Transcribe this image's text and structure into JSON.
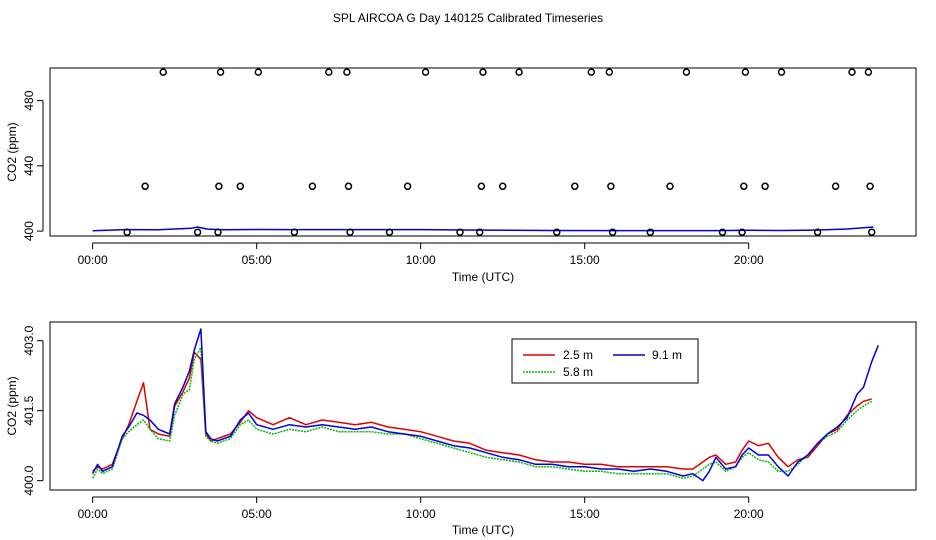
{
  "title": "SPL AIRCOA G  Day 140125  Calibrated Timeseries",
  "colors": {
    "s25": "#e00000",
    "s58": "#00bb00",
    "s91": "#0000dd",
    "points": "#000000"
  },
  "chart_data": [
    {
      "type": "scatter",
      "xlabel": "Time (UTC)",
      "ylabel": "CO2 (ppm)",
      "xlim": [
        -1.3,
        25.1
      ],
      "ylim": [
        397,
        500
      ],
      "x_ticks": [
        0,
        5,
        10,
        15,
        20
      ],
      "x_tick_labels": [
        "00:00",
        "05:00",
        "10:00",
        "15:00",
        "20:00"
      ],
      "y_ticks": [
        400,
        440,
        480
      ],
      "y_tick_labels": [
        "400",
        "440",
        "480"
      ],
      "points": [
        {
          "x": 1.05,
          "y": 399.3
        },
        {
          "x": 1.6,
          "y": 427.5
        },
        {
          "x": 2.15,
          "y": 497.5
        },
        {
          "x": 3.2,
          "y": 399.3
        },
        {
          "x": 3.82,
          "y": 399.3
        },
        {
          "x": 3.85,
          "y": 427.5
        },
        {
          "x": 3.9,
          "y": 497.5
        },
        {
          "x": 4.5,
          "y": 427.5
        },
        {
          "x": 5.05,
          "y": 497.5
        },
        {
          "x": 6.15,
          "y": 399.3
        },
        {
          "x": 6.7,
          "y": 427.5
        },
        {
          "x": 7.2,
          "y": 497.5
        },
        {
          "x": 7.75,
          "y": 497.5
        },
        {
          "x": 7.8,
          "y": 427.5
        },
        {
          "x": 7.85,
          "y": 399.3
        },
        {
          "x": 9.05,
          "y": 399.3
        },
        {
          "x": 9.6,
          "y": 427.5
        },
        {
          "x": 10.15,
          "y": 497.5
        },
        {
          "x": 11.2,
          "y": 399.3
        },
        {
          "x": 11.8,
          "y": 399.3
        },
        {
          "x": 11.85,
          "y": 427.5
        },
        {
          "x": 11.9,
          "y": 497.5
        },
        {
          "x": 12.5,
          "y": 427.5
        },
        {
          "x": 13.0,
          "y": 497.5
        },
        {
          "x": 14.15,
          "y": 399.3
        },
        {
          "x": 14.7,
          "y": 427.5
        },
        {
          "x": 15.2,
          "y": 497.5
        },
        {
          "x": 15.75,
          "y": 497.5
        },
        {
          "x": 15.8,
          "y": 427.5
        },
        {
          "x": 15.85,
          "y": 399.3
        },
        {
          "x": 17.0,
          "y": 399.3
        },
        {
          "x": 17.6,
          "y": 427.5
        },
        {
          "x": 18.1,
          "y": 497.5
        },
        {
          "x": 19.2,
          "y": 399.3
        },
        {
          "x": 19.8,
          "y": 399.3
        },
        {
          "x": 19.85,
          "y": 427.5
        },
        {
          "x": 19.9,
          "y": 497.5
        },
        {
          "x": 20.5,
          "y": 427.5
        },
        {
          "x": 21.0,
          "y": 497.5
        },
        {
          "x": 22.1,
          "y": 399.3
        },
        {
          "x": 22.65,
          "y": 427.5
        },
        {
          "x": 23.15,
          "y": 497.5
        },
        {
          "x": 23.65,
          "y": 497.5
        },
        {
          "x": 23.7,
          "y": 427.5
        },
        {
          "x": 23.75,
          "y": 399.3
        }
      ],
      "line": {
        "x": [
          0,
          1,
          2,
          3,
          3.2,
          3.5,
          4,
          5,
          6,
          8,
          10,
          12,
          14,
          16,
          18,
          19,
          20,
          21,
          22,
          23,
          23.8
        ],
        "y": [
          400.2,
          400.9,
          400.8,
          401.7,
          402.5,
          401.2,
          400.8,
          401.0,
          400.9,
          400.9,
          400.9,
          400.6,
          400.4,
          400.3,
          400.3,
          400.3,
          400.5,
          400.4,
          400.6,
          401.3,
          402.5
        ]
      }
    },
    {
      "type": "line",
      "xlabel": "Time (UTC)",
      "ylabel": "CO2 (ppm)",
      "xlim": [
        -1.3,
        25.1
      ],
      "ylim": [
        399.8,
        403.4
      ],
      "x_ticks": [
        0,
        5,
        10,
        15,
        20
      ],
      "x_tick_labels": [
        "00:00",
        "05:00",
        "10:00",
        "15:00",
        "20:00"
      ],
      "y_ticks": [
        400.0,
        401.5,
        403.0
      ],
      "y_tick_labels": [
        "400.0",
        "401.5",
        "403.0"
      ],
      "legend_position": "top-right",
      "series": [
        {
          "name": "2.5 m",
          "color": "#e00000",
          "x": [
            0,
            0.15,
            0.3,
            0.6,
            0.9,
            1.1,
            1.35,
            1.55,
            1.75,
            2.0,
            2.35,
            2.5,
            2.75,
            2.95,
            3.1,
            3.3,
            3.45,
            3.6,
            3.8,
            4.2,
            4.5,
            4.75,
            5.0,
            5.5,
            6.0,
            6.5,
            7.0,
            7.5,
            8.0,
            8.5,
            9.0,
            9.5,
            10.0,
            10.5,
            11.0,
            11.5,
            12.0,
            12.5,
            13.0,
            13.5,
            14.0,
            14.5,
            15.0,
            15.5,
            16.0,
            16.5,
            17.0,
            17.5,
            18.0,
            18.3,
            18.6,
            18.8,
            19.0,
            19.3,
            19.6,
            19.8,
            20.0,
            20.3,
            20.6,
            20.9,
            21.2,
            21.5,
            21.8,
            22.1,
            22.4,
            22.7,
            23.0,
            23.3,
            23.5,
            23.75
          ],
          "y": [
            400.2,
            400.3,
            400.25,
            400.35,
            400.9,
            401.2,
            401.7,
            402.1,
            401.1,
            401.0,
            400.95,
            401.6,
            401.9,
            402.2,
            402.75,
            402.6,
            401.0,
            400.85,
            400.9,
            401.0,
            401.25,
            401.5,
            401.35,
            401.2,
            401.35,
            401.2,
            401.3,
            401.25,
            401.2,
            401.25,
            401.15,
            401.1,
            401.05,
            400.95,
            400.85,
            400.8,
            400.65,
            400.6,
            400.55,
            400.45,
            400.4,
            400.4,
            400.35,
            400.35,
            400.3,
            400.3,
            400.3,
            400.3,
            400.25,
            400.25,
            400.4,
            400.5,
            400.55,
            400.35,
            400.4,
            400.65,
            400.85,
            400.75,
            400.8,
            400.5,
            400.3,
            400.45,
            400.5,
            400.75,
            401.0,
            401.1,
            401.4,
            401.6,
            401.7,
            401.75
          ]
        },
        {
          "name": "5.8 m",
          "color": "#00bb00",
          "x": [
            0,
            0.15,
            0.3,
            0.6,
            0.9,
            1.1,
            1.35,
            1.55,
            1.75,
            2.0,
            2.35,
            2.5,
            2.75,
            2.95,
            3.1,
            3.3,
            3.45,
            3.6,
            3.8,
            4.2,
            4.5,
            4.75,
            5.0,
            5.5,
            6.0,
            6.5,
            7.0,
            7.5,
            8.0,
            8.5,
            9.0,
            9.5,
            10.0,
            10.5,
            11.0,
            11.5,
            12.0,
            12.5,
            13.0,
            13.5,
            14.0,
            14.5,
            15.0,
            15.5,
            16.0,
            16.5,
            17.0,
            17.5,
            18.0,
            18.3,
            18.6,
            18.8,
            19.0,
            19.3,
            19.6,
            19.8,
            20.0,
            20.3,
            20.6,
            20.9,
            21.2,
            21.5,
            21.8,
            22.1,
            22.4,
            22.7,
            23.0,
            23.3,
            23.5,
            23.75
          ],
          "y": [
            400.05,
            400.25,
            400.15,
            400.25,
            400.9,
            401.05,
            401.2,
            401.3,
            401.1,
            400.9,
            400.85,
            401.4,
            401.85,
            401.95,
            402.6,
            402.85,
            400.95,
            400.85,
            400.8,
            400.9,
            401.2,
            401.3,
            401.1,
            401.0,
            401.1,
            401.05,
            401.15,
            401.05,
            401.05,
            401.05,
            401.0,
            401.0,
            400.9,
            400.8,
            400.7,
            400.6,
            400.5,
            400.45,
            400.4,
            400.3,
            400.3,
            400.25,
            400.2,
            400.2,
            400.15,
            400.15,
            400.15,
            400.15,
            400.05,
            400.1,
            400.25,
            400.35,
            400.4,
            400.2,
            400.3,
            400.5,
            400.6,
            400.45,
            400.4,
            400.2,
            400.2,
            400.35,
            400.55,
            400.8,
            400.95,
            401.05,
            401.3,
            401.5,
            401.6,
            401.7
          ]
        },
        {
          "name": "9.1 m",
          "color": "#0000dd",
          "x": [
            0,
            0.15,
            0.3,
            0.6,
            0.9,
            1.1,
            1.35,
            1.55,
            1.75,
            2.0,
            2.35,
            2.5,
            2.75,
            2.95,
            3.1,
            3.3,
            3.45,
            3.6,
            3.8,
            4.2,
            4.5,
            4.75,
            5.0,
            5.5,
            6.0,
            6.5,
            7.0,
            7.5,
            8.0,
            8.5,
            9.0,
            9.5,
            10.0,
            10.5,
            11.0,
            11.5,
            12.0,
            12.5,
            13.0,
            13.5,
            14.0,
            14.5,
            15.0,
            15.5,
            16.0,
            16.5,
            17.0,
            17.5,
            18.0,
            18.3,
            18.6,
            18.8,
            19.0,
            19.3,
            19.6,
            19.8,
            20.0,
            20.3,
            20.6,
            20.9,
            21.2,
            21.5,
            21.8,
            22.1,
            22.4,
            22.7,
            23.0,
            23.3,
            23.5,
            23.75,
            23.95
          ],
          "y": [
            400.15,
            400.35,
            400.2,
            400.3,
            400.95,
            401.15,
            401.45,
            401.4,
            401.3,
            401.1,
            401.0,
            401.65,
            402.0,
            402.35,
            402.8,
            403.25,
            401.05,
            400.9,
            400.85,
            400.95,
            401.3,
            401.45,
            401.2,
            401.1,
            401.2,
            401.15,
            401.2,
            401.15,
            401.1,
            401.15,
            401.05,
            401.0,
            400.95,
            400.85,
            400.75,
            400.7,
            400.6,
            400.5,
            400.45,
            400.35,
            400.35,
            400.3,
            400.3,
            400.25,
            400.25,
            400.2,
            400.25,
            400.2,
            400.1,
            400.15,
            400.0,
            400.2,
            400.5,
            400.25,
            400.3,
            400.55,
            400.7,
            400.55,
            400.55,
            400.3,
            400.1,
            400.4,
            400.55,
            400.8,
            401.0,
            401.15,
            401.35,
            401.85,
            402.0,
            402.55,
            402.9
          ]
        }
      ]
    }
  ]
}
